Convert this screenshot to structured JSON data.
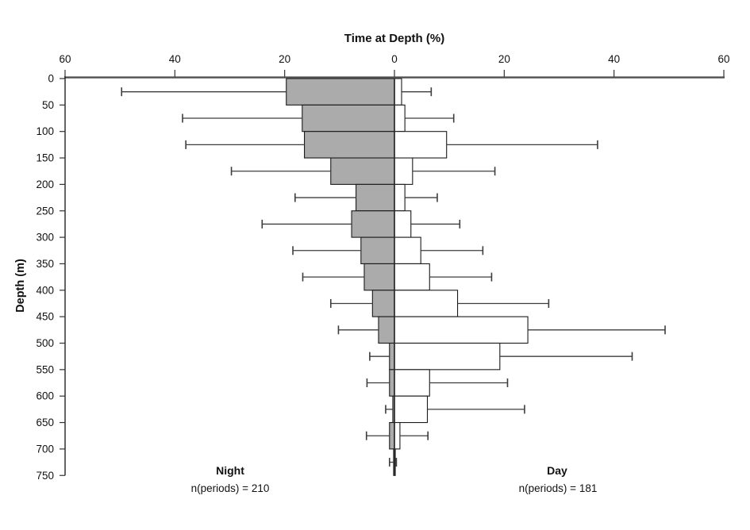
{
  "title": "Time at Depth (%)",
  "y_axis_label": "Depth (m)",
  "panel_labels": {
    "night_title": "Night",
    "night_n": "n(periods) = 210",
    "day_title": "Day",
    "day_n": "n(periods) = 181"
  },
  "colors": {
    "night_fill": "#ababab",
    "day_fill": "#ffffff",
    "bar_outline": "#1a1a1a",
    "error_bar": "#3d3d3d",
    "x_axis_line": "#4f4f4f",
    "y_axis_line": "#222222",
    "center_line": "#2b2b2b",
    "tick": "#333333",
    "text": "#111111",
    "background": "#ffffff"
  },
  "chart_data": {
    "type": "bar",
    "subtype": "diverging-horizontal-depth-profile",
    "title": "Time at Depth (%)",
    "xlabel": "Time at Depth (%)",
    "ylabel": "Depth (m)",
    "grid": false,
    "legend": "none",
    "error_bars": "one-sided, cap at outer end",
    "x_axis": {
      "position": "top",
      "tick_labels": [
        "60",
        "40",
        "20",
        "0",
        "20",
        "40",
        "60"
      ],
      "tick_values": [
        -60,
        -40,
        -20,
        0,
        20,
        40,
        60
      ],
      "abs_range_each_side": [
        0,
        60
      ]
    },
    "y_axis": {
      "units": "m",
      "range": [
        0,
        750
      ],
      "tick_labels": [
        "0",
        "50",
        "100",
        "150",
        "200",
        "250",
        "300",
        "350",
        "400",
        "450",
        "500",
        "550",
        "600",
        "650",
        "700",
        "750"
      ]
    },
    "depth_bin_size_m": 50,
    "depth_bin_tops_m": [
      0,
      50,
      100,
      150,
      200,
      250,
      300,
      350,
      400,
      450,
      500,
      550,
      600,
      650,
      700
    ],
    "series": [
      {
        "name": "Night",
        "side": "left",
        "n_periods": 210,
        "fill": "#ababab",
        "values_pct": [
          19.7,
          16.8,
          16.4,
          11.6,
          7.0,
          7.8,
          6.1,
          5.5,
          4.0,
          2.9,
          0.9,
          0.9,
          0.3,
          0.9,
          0.15
        ],
        "error_upper_pct": [
          49.7,
          38.6,
          38.0,
          29.7,
          18.1,
          24.1,
          18.5,
          16.7,
          11.6,
          10.2,
          4.5,
          5.0,
          1.6,
          5.1,
          0.9
        ]
      },
      {
        "name": "Day",
        "side": "right",
        "n_periods": 181,
        "fill": "#ffffff",
        "values_pct": [
          1.3,
          1.9,
          9.5,
          3.3,
          1.9,
          3.0,
          4.8,
          6.4,
          11.5,
          24.3,
          19.2,
          6.4,
          6.0,
          1.0,
          0.15
        ],
        "error_upper_pct": [
          6.7,
          10.8,
          37.0,
          18.3,
          7.8,
          11.9,
          16.1,
          17.7,
          28.1,
          49.3,
          43.3,
          20.6,
          23.7,
          6.1,
          0.35
        ]
      }
    ]
  }
}
